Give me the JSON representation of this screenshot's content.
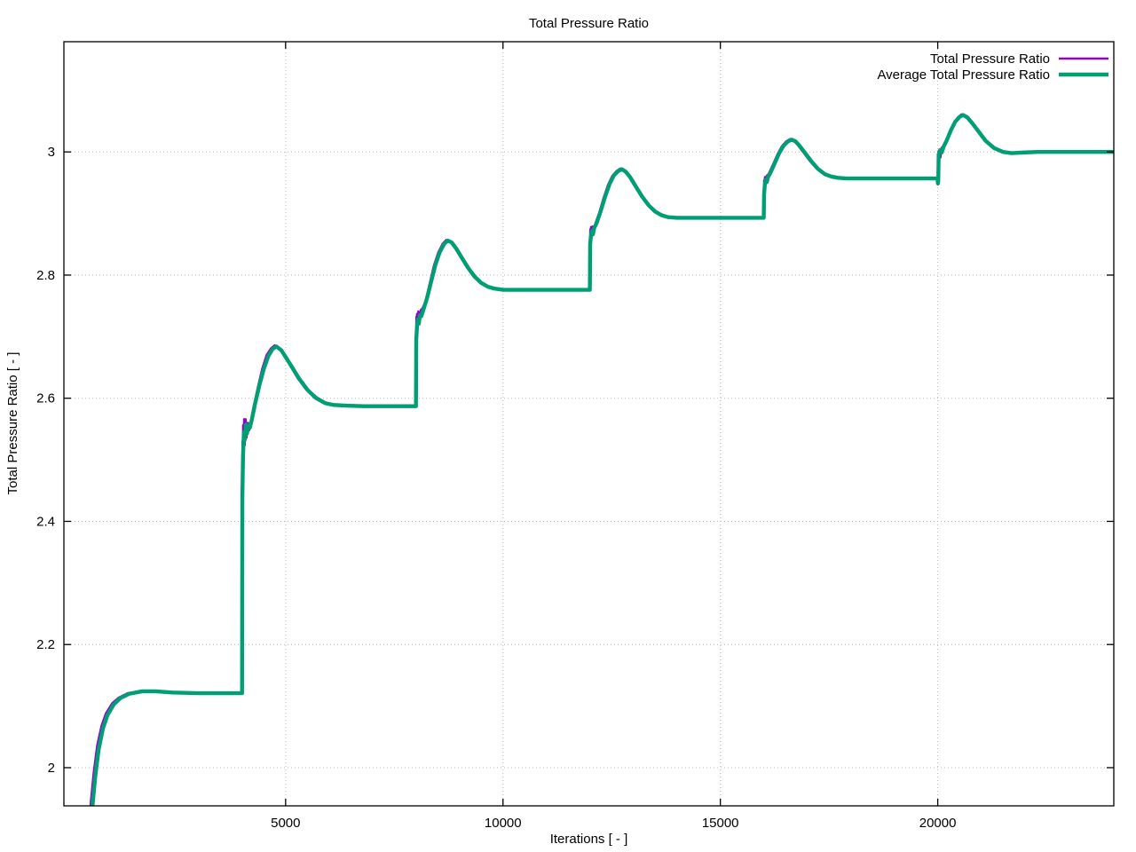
{
  "chart_data": {
    "type": "line",
    "title": "Total Pressure Ratio",
    "xlabel": "Iterations [ - ]",
    "ylabel": "Total Pressure Ratio [ - ]",
    "xlim": [
      -100,
      24050
    ],
    "ylim": [
      1.938,
      3.179
    ],
    "xticks": [
      5000,
      10000,
      15000,
      20000
    ],
    "yticks": [
      2,
      2.2,
      2.4,
      2.6,
      2.8,
      3
    ],
    "grid": true,
    "grid_color": "#b8b8b8",
    "axis_color": "#000000",
    "background": "#ffffff",
    "legend_position": "top-right-inside",
    "series": [
      {
        "name": "Total Pressure Ratio",
        "color": "#9400D3",
        "line_width": 2.4,
        "points": [
          [
            478,
            1.9
          ],
          [
            520,
            1.945
          ],
          [
            585,
            1.992
          ],
          [
            665,
            2.036
          ],
          [
            765,
            2.068
          ],
          [
            865,
            2.088
          ],
          [
            1015,
            2.105
          ],
          [
            1165,
            2.114
          ],
          [
            1365,
            2.121
          ],
          [
            1700,
            2.125
          ],
          [
            2000,
            2.124
          ],
          [
            2400,
            2.122
          ],
          [
            3000,
            2.121
          ],
          [
            3600,
            2.121
          ],
          [
            3999,
            2.121
          ],
          [
            4002,
            2.455
          ],
          [
            4008,
            2.53
          ],
          [
            4014,
            2.462
          ],
          [
            4022,
            2.556
          ],
          [
            4032,
            2.498
          ],
          [
            4044,
            2.566
          ],
          [
            4060,
            2.524
          ],
          [
            4080,
            2.566
          ],
          [
            4102,
            2.536
          ],
          [
            4132,
            2.56
          ],
          [
            4162,
            2.548
          ],
          [
            4202,
            2.563
          ],
          [
            4262,
            2.586
          ],
          [
            4362,
            2.618
          ],
          [
            4462,
            2.648
          ],
          [
            4562,
            2.67
          ],
          [
            4662,
            2.681
          ],
          [
            4750,
            2.686
          ],
          [
            4862,
            2.68
          ],
          [
            4972,
            2.668
          ],
          [
            5122,
            2.651
          ],
          [
            5272,
            2.633
          ],
          [
            5472,
            2.614
          ],
          [
            5672,
            2.6
          ],
          [
            5872,
            2.592
          ],
          [
            6072,
            2.589
          ],
          [
            6400,
            2.588
          ],
          [
            7000,
            2.587
          ],
          [
            7999,
            2.587
          ],
          [
            8002,
            2.7
          ],
          [
            8007,
            2.732
          ],
          [
            8013,
            2.706
          ],
          [
            8022,
            2.737
          ],
          [
            8036,
            2.716
          ],
          [
            8052,
            2.741
          ],
          [
            8076,
            2.726
          ],
          [
            8108,
            2.743
          ],
          [
            8148,
            2.746
          ],
          [
            8222,
            2.758
          ],
          [
            8312,
            2.786
          ],
          [
            8412,
            2.816
          ],
          [
            8512,
            2.837
          ],
          [
            8612,
            2.851
          ],
          [
            8692,
            2.857
          ],
          [
            8782,
            2.854
          ],
          [
            8885,
            2.845
          ],
          [
            9015,
            2.83
          ],
          [
            9165,
            2.813
          ],
          [
            9315,
            2.798
          ],
          [
            9465,
            2.788
          ],
          [
            9615,
            2.782
          ],
          [
            9765,
            2.778
          ],
          [
            9965,
            2.776
          ],
          [
            10400,
            2.776
          ],
          [
            11000,
            2.776
          ],
          [
            11999,
            2.776
          ],
          [
            12002,
            2.848
          ],
          [
            12007,
            2.874
          ],
          [
            12014,
            2.853
          ],
          [
            12024,
            2.878
          ],
          [
            12040,
            2.861
          ],
          [
            12060,
            2.879
          ],
          [
            12092,
            2.873
          ],
          [
            12130,
            2.885
          ],
          [
            12212,
            2.901
          ],
          [
            12312,
            2.925
          ],
          [
            12412,
            2.946
          ],
          [
            12512,
            2.961
          ],
          [
            12612,
            2.969
          ],
          [
            12692,
            2.973
          ],
          [
            12782,
            2.969
          ],
          [
            12885,
            2.961
          ],
          [
            13015,
            2.946
          ],
          [
            13165,
            2.929
          ],
          [
            13315,
            2.915
          ],
          [
            13465,
            2.904
          ],
          [
            13615,
            2.898
          ],
          [
            13765,
            2.894
          ],
          [
            13965,
            2.893
          ],
          [
            14500,
            2.893
          ],
          [
            15200,
            2.893
          ],
          [
            15999,
            2.893
          ],
          [
            16002,
            2.926
          ],
          [
            16007,
            2.954
          ],
          [
            16014,
            2.936
          ],
          [
            16024,
            2.959
          ],
          [
            16040,
            2.946
          ],
          [
            16062,
            2.961
          ],
          [
            16108,
            2.964
          ],
          [
            16212,
            2.98
          ],
          [
            16312,
            2.996
          ],
          [
            16412,
            3.009
          ],
          [
            16512,
            3.017
          ],
          [
            16602,
            3.021
          ],
          [
            16692,
            3.018
          ],
          [
            16792,
            3.01
          ],
          [
            16912,
            2.999
          ],
          [
            17062,
            2.985
          ],
          [
            17212,
            2.973
          ],
          [
            17362,
            2.965
          ],
          [
            17512,
            2.96
          ],
          [
            17662,
            2.958
          ],
          [
            17862,
            2.957
          ],
          [
            18400,
            2.957
          ],
          [
            19200,
            2.957
          ],
          [
            19997,
            2.957
          ],
          [
            20002,
            2.947
          ],
          [
            20005,
            2.99
          ],
          [
            20010,
            2.958
          ],
          [
            20016,
            3.001
          ],
          [
            20026,
            2.977
          ],
          [
            20040,
            3.004
          ],
          [
            20062,
            2.991
          ],
          [
            20090,
            3.007
          ],
          [
            20130,
            3.005
          ],
          [
            20182,
            3.014
          ],
          [
            20262,
            3.031
          ],
          [
            20362,
            3.046
          ],
          [
            20462,
            3.056
          ],
          [
            20542,
            3.061
          ],
          [
            20642,
            3.058
          ],
          [
            20762,
            3.048
          ],
          [
            20912,
            3.034
          ],
          [
            21062,
            3.02
          ],
          [
            21262,
            3.007
          ],
          [
            21462,
            3.001
          ],
          [
            21662,
            2.998
          ],
          [
            21912,
            2.999
          ],
          [
            22302,
            3.0
          ],
          [
            23002,
            3.0
          ],
          [
            24050,
            3.0
          ]
        ]
      },
      {
        "name": "Average Total Pressure Ratio",
        "color": "#009E73",
        "line_width": 4.4,
        "points": [
          [
            520,
            1.9
          ],
          [
            560,
            1.94
          ],
          [
            620,
            1.985
          ],
          [
            700,
            2.03
          ],
          [
            800,
            2.064
          ],
          [
            900,
            2.085
          ],
          [
            1050,
            2.103
          ],
          [
            1200,
            2.113
          ],
          [
            1400,
            2.12
          ],
          [
            1700,
            2.124
          ],
          [
            2000,
            2.124
          ],
          [
            2400,
            2.122
          ],
          [
            3000,
            2.121
          ],
          [
            3600,
            2.121
          ],
          [
            3998,
            2.121
          ],
          [
            4005,
            2.44
          ],
          [
            4020,
            2.505
          ],
          [
            4040,
            2.545
          ],
          [
            4062,
            2.533
          ],
          [
            4085,
            2.557
          ],
          [
            4112,
            2.543
          ],
          [
            4142,
            2.556
          ],
          [
            4178,
            2.552
          ],
          [
            4225,
            2.566
          ],
          [
            4300,
            2.592
          ],
          [
            4400,
            2.622
          ],
          [
            4500,
            2.648
          ],
          [
            4600,
            2.668
          ],
          [
            4700,
            2.68
          ],
          [
            4790,
            2.684
          ],
          [
            4900,
            2.678
          ],
          [
            5010,
            2.666
          ],
          [
            5160,
            2.649
          ],
          [
            5310,
            2.632
          ],
          [
            5510,
            2.613
          ],
          [
            5710,
            2.6
          ],
          [
            5910,
            2.592
          ],
          [
            6110,
            2.589
          ],
          [
            6400,
            2.588
          ],
          [
            6800,
            2.587
          ],
          [
            7400,
            2.587
          ],
          [
            7998,
            2.587
          ],
          [
            8005,
            2.695
          ],
          [
            8022,
            2.716
          ],
          [
            8042,
            2.728
          ],
          [
            8064,
            2.721
          ],
          [
            8088,
            2.735
          ],
          [
            8120,
            2.733
          ],
          [
            8162,
            2.742
          ],
          [
            8250,
            2.762
          ],
          [
            8350,
            2.79
          ],
          [
            8450,
            2.818
          ],
          [
            8550,
            2.838
          ],
          [
            8650,
            2.851
          ],
          [
            8730,
            2.856
          ],
          [
            8820,
            2.853
          ],
          [
            8925,
            2.843
          ],
          [
            9055,
            2.828
          ],
          [
            9205,
            2.811
          ],
          [
            9355,
            2.797
          ],
          [
            9505,
            2.787
          ],
          [
            9655,
            2.781
          ],
          [
            9805,
            2.778
          ],
          [
            10005,
            2.776
          ],
          [
            10405,
            2.776
          ],
          [
            11005,
            2.776
          ],
          [
            11998,
            2.776
          ],
          [
            12005,
            2.85
          ],
          [
            12022,
            2.863
          ],
          [
            12045,
            2.872
          ],
          [
            12068,
            2.866
          ],
          [
            12100,
            2.877
          ],
          [
            12152,
            2.884
          ],
          [
            12252,
            2.905
          ],
          [
            12352,
            2.928
          ],
          [
            12452,
            2.948
          ],
          [
            12552,
            2.962
          ],
          [
            12652,
            2.969
          ],
          [
            12732,
            2.972
          ],
          [
            12822,
            2.968
          ],
          [
            12925,
            2.959
          ],
          [
            13055,
            2.944
          ],
          [
            13205,
            2.927
          ],
          [
            13355,
            2.913
          ],
          [
            13505,
            2.903
          ],
          [
            13655,
            2.897
          ],
          [
            13805,
            2.894
          ],
          [
            14005,
            2.893
          ],
          [
            14505,
            2.893
          ],
          [
            15205,
            2.893
          ],
          [
            15998,
            2.893
          ],
          [
            16005,
            2.93
          ],
          [
            16022,
            2.946
          ],
          [
            16045,
            2.955
          ],
          [
            16068,
            2.951
          ],
          [
            16100,
            2.96
          ],
          [
            16152,
            2.966
          ],
          [
            16252,
            2.982
          ],
          [
            16352,
            2.998
          ],
          [
            16452,
            3.01
          ],
          [
            16552,
            3.017
          ],
          [
            16642,
            3.02
          ],
          [
            16732,
            3.017
          ],
          [
            16832,
            3.009
          ],
          [
            16952,
            2.998
          ],
          [
            17102,
            2.984
          ],
          [
            17252,
            2.972
          ],
          [
            17402,
            2.964
          ],
          [
            17552,
            2.96
          ],
          [
            17702,
            2.958
          ],
          [
            17902,
            2.957
          ],
          [
            18402,
            2.957
          ],
          [
            19202,
            2.957
          ],
          [
            19996,
            2.957
          ],
          [
            20004,
            2.949
          ],
          [
            20012,
            2.953
          ],
          [
            20022,
            2.996
          ],
          [
            20060,
            3.003
          ],
          [
            20092,
            2.999
          ],
          [
            20132,
            3.008
          ],
          [
            20202,
            3.018
          ],
          [
            20302,
            3.035
          ],
          [
            20402,
            3.049
          ],
          [
            20502,
            3.057
          ],
          [
            20582,
            3.06
          ],
          [
            20682,
            3.056
          ],
          [
            20802,
            3.046
          ],
          [
            20952,
            3.032
          ],
          [
            21102,
            3.018
          ],
          [
            21302,
            3.006
          ],
          [
            21502,
            3.0
          ],
          [
            21702,
            2.998
          ],
          [
            21952,
            2.999
          ],
          [
            22302,
            3.0
          ],
          [
            23002,
            3.0
          ],
          [
            24050,
            3.0
          ]
        ]
      }
    ]
  }
}
